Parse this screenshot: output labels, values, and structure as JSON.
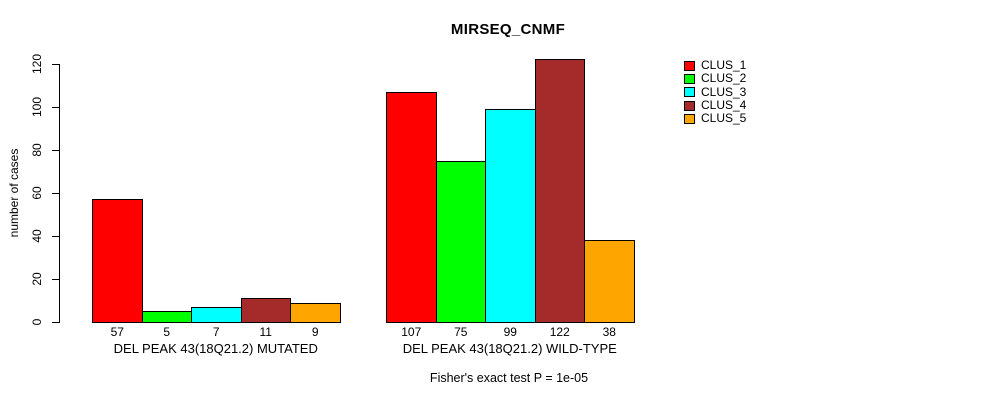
{
  "title": "MIRSEQ_CNMF",
  "footnote": "Fisher's exact test P = 1e-05",
  "chart_data": {
    "type": "bar",
    "grouped": true,
    "title": "MIRSEQ_CNMF",
    "xlabel": "",
    "ylabel": "number of cases",
    "ylim": [
      0,
      120
    ],
    "yticks": [
      0,
      20,
      40,
      60,
      80,
      100,
      120
    ],
    "grid": false,
    "legend_position": "right",
    "bar_border_color": "#000000",
    "background_color": "#ffffff",
    "categories": [
      "DEL PEAK 43(18Q21.2) MUTATED",
      "DEL PEAK 43(18Q21.2) WILD-TYPE"
    ],
    "series": [
      {
        "name": "CLUS_1",
        "color": "#FF0000",
        "values": [
          57,
          107
        ]
      },
      {
        "name": "CLUS_2",
        "color": "#00FF00",
        "values": [
          5,
          75
        ]
      },
      {
        "name": "CLUS_3",
        "color": "#00FFFF",
        "values": [
          7,
          99
        ]
      },
      {
        "name": "CLUS_4",
        "color": "#A52A2A",
        "values": [
          11,
          122
        ]
      },
      {
        "name": "CLUS_5",
        "color": "#FFA500",
        "values": [
          9,
          38
        ]
      }
    ],
    "bar_value_labels_shown": true,
    "annotation": "Fisher's exact test P = 1e-05"
  }
}
